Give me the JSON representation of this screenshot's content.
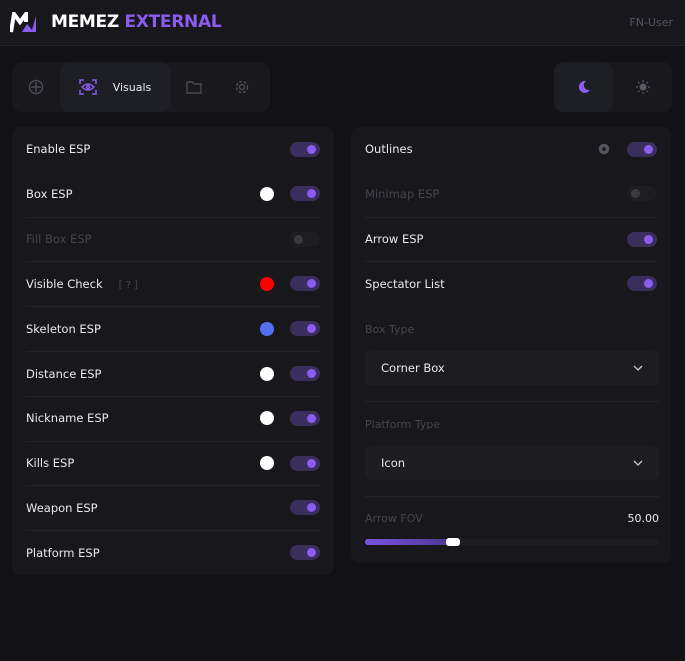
{
  "header": {
    "title_white": "MEMEZ",
    "title_accent": "EXTERNAL",
    "user": "FN-User",
    "accent": "#8a5cf0"
  },
  "tabs": [
    {
      "icon": "crosshair-icon"
    },
    {
      "icon": "eye-icon",
      "label": "Visuals",
      "active": true
    },
    {
      "icon": "folder-icon"
    },
    {
      "icon": "gear-icon"
    }
  ],
  "theme": {
    "active": "dark",
    "options": [
      "moon-icon",
      "sun-icon"
    ]
  },
  "left": {
    "rows": [
      {
        "label": "Enable ESP",
        "on": true,
        "enabled": true
      },
      {
        "label": "Box ESP",
        "on": true,
        "enabled": true,
        "color": "#ffffff"
      },
      {
        "label": "Fill Box ESP",
        "on": false,
        "enabled": false
      },
      {
        "label": "Visible Check",
        "help": "[ ? ]",
        "on": true,
        "enabled": true,
        "color": "#ff0000"
      },
      {
        "label": "Skeleton ESP",
        "on": true,
        "enabled": true,
        "color": "#5470f0"
      },
      {
        "label": "Distance ESP",
        "on": true,
        "enabled": true,
        "color": "#ffffff"
      },
      {
        "label": "Nickname ESP",
        "on": true,
        "enabled": true,
        "color": "#ffffff"
      },
      {
        "label": "Kills ESP",
        "on": true,
        "enabled": true,
        "color": "#ffffff"
      },
      {
        "label": "Weapon ESP",
        "on": true,
        "enabled": true
      },
      {
        "label": "Platform ESP",
        "on": true,
        "enabled": true
      }
    ]
  },
  "right": {
    "rows": [
      {
        "label": "Outlines",
        "on": true,
        "enabled": true,
        "settings": true
      },
      {
        "label": "Minimap ESP",
        "on": false,
        "enabled": false
      },
      {
        "label": "Arrow ESP",
        "on": true,
        "enabled": true
      },
      {
        "label": "Spectator List",
        "on": true,
        "enabled": true
      }
    ],
    "box_type": {
      "label": "Box Type",
      "value": "Corner Box"
    },
    "platform_type": {
      "label": "Platform Type",
      "value": "Icon"
    },
    "arrow_fov": {
      "label": "Arrow FOV",
      "value": "50.00",
      "fill_fraction": 0.3
    }
  }
}
